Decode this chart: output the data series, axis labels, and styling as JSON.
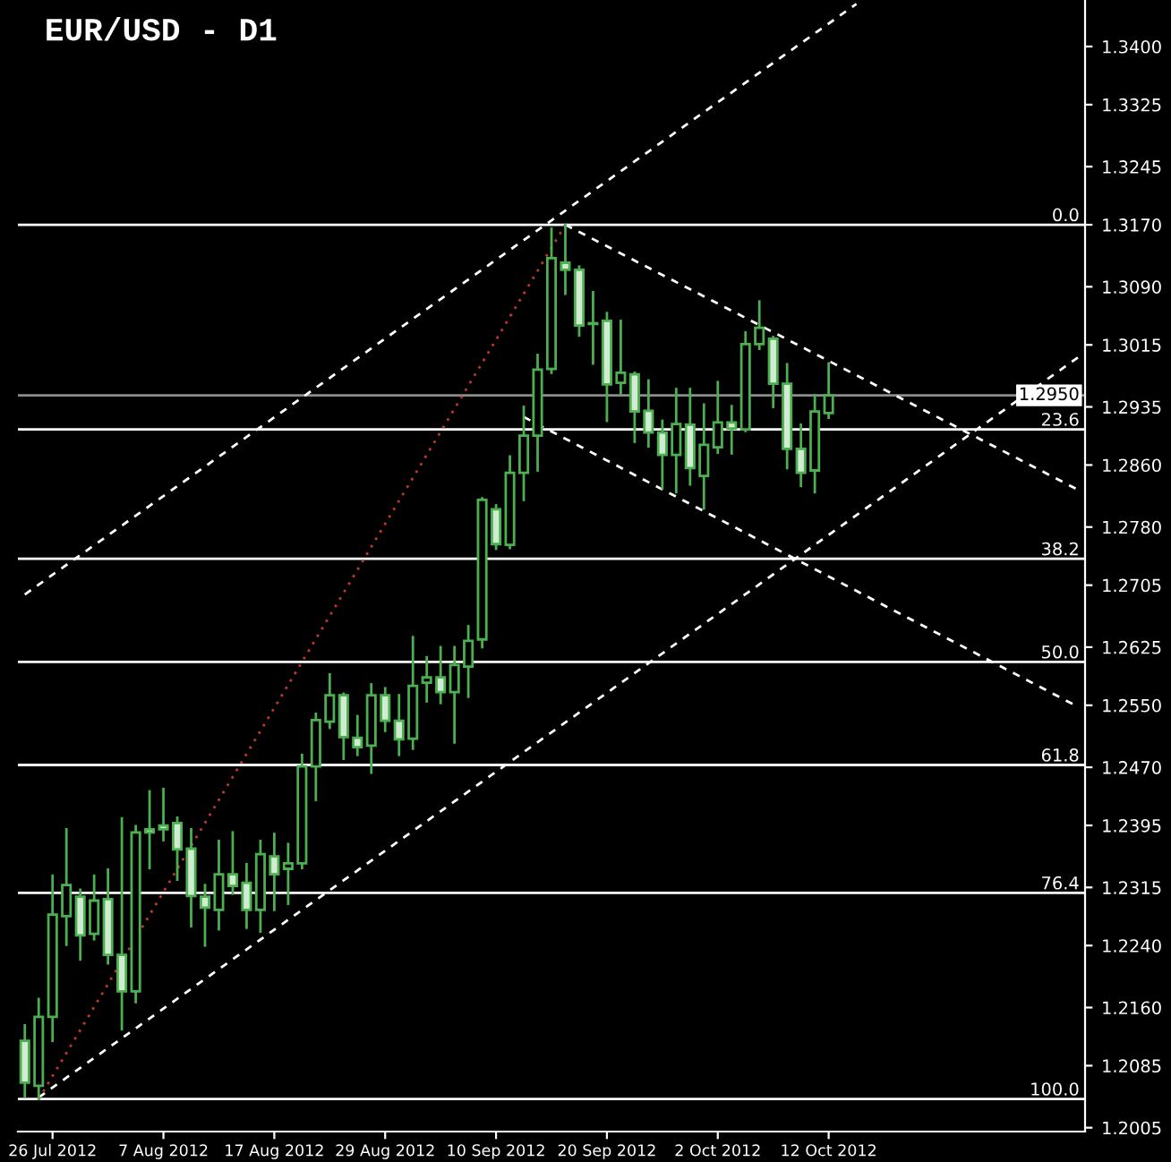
{
  "chart_data": {
    "type": "candlestick",
    "title": "EUR/USD - D1",
    "categories": [
      null,
      null,
      "26 Jul 2012",
      null,
      null,
      null,
      null,
      null,
      null,
      null,
      "7 Aug 2012",
      null,
      null,
      null,
      null,
      null,
      null,
      null,
      "17 Aug 2012",
      null,
      null,
      null,
      null,
      null,
      null,
      null,
      "29 Aug 2012",
      null,
      null,
      null,
      null,
      null,
      null,
      null,
      "10 Sep 2012",
      null,
      null,
      null,
      null,
      null,
      null,
      null,
      "20 Sep 2012",
      null,
      null,
      null,
      null,
      null,
      null,
      null,
      "2 Oct 2012",
      null,
      null,
      null,
      null,
      null,
      null,
      null,
      "12 Oct 2012",
      null,
      null,
      null,
      null,
      null,
      null,
      null,
      null,
      null,
      null,
      null,
      null,
      null,
      null,
      null,
      null,
      null,
      null
    ],
    "ylim": [
      1.2,
      1.346
    ],
    "yticks": [
      1.2005,
      1.2085,
      {
        "value": 1.216,
        "label": "1.2160"
      },
      {
        "value": 1.224,
        "label": "1.2240"
      },
      1.2315,
      1.2395,
      {
        "value": 1.247,
        "label": "1.2470"
      },
      {
        "value": 1.255,
        "label": "1.2550"
      },
      1.2625,
      1.2705,
      {
        "value": 1.278,
        "label": "1.2780"
      },
      {
        "value": 1.286,
        "label": "1.2860"
      },
      1.2935,
      1.3015,
      {
        "value": 1.309,
        "label": "1.3090"
      },
      {
        "value": 1.317,
        "label": "1.3170"
      },
      1.3245,
      1.3325,
      {
        "value": 1.34,
        "label": "1.3400"
      }
    ],
    "annotations": [
      {
        "text": "0.0",
        "y": 1.317
      },
      {
        "text": "23.6",
        "y": 1.2906
      },
      {
        "text": "38.2",
        "y": 1.2739
      },
      {
        "text": "50.0",
        "y": 1.2606
      },
      {
        "text": "61.8",
        "y": 1.2473
      },
      {
        "text": "76.4",
        "y": 1.2308
      },
      {
        "text": "100.0",
        "y": 1.2042
      }
    ],
    "ref_lines": [
      {
        "axis": "y",
        "value": 1.317,
        "color": "#ffffff"
      },
      {
        "axis": "y",
        "value": 1.2906,
        "color": "#ffffff"
      },
      {
        "axis": "y",
        "value": 1.2739,
        "color": "#ffffff"
      },
      {
        "axis": "y",
        "value": 1.2606,
        "color": "#ffffff"
      },
      {
        "axis": "y",
        "value": 1.2473,
        "color": "#ffffff"
      },
      {
        "axis": "y",
        "value": 1.2308,
        "color": "#ffffff"
      },
      {
        "axis": "y",
        "value": 1.2042,
        "color": "#ffffff"
      },
      {
        "axis": "y",
        "value": 1.295,
        "label": "1.2950",
        "color": "#8c8c8c"
      }
    ],
    "series": [
      {
        "type": "candlestick",
        "color": "#4caf50",
        "ohlc": [
          [
            1.2117,
            1.2137,
            1.2045,
            1.2063
          ],
          [
            1.2059,
            1.2171,
            1.2042,
            1.2148
          ],
          [
            1.2148,
            1.233,
            1.2117,
            1.228
          ],
          [
            1.2278,
            1.239,
            1.2241,
            1.2318
          ],
          [
            1.2303,
            1.2312,
            1.2222,
            1.2253
          ],
          [
            1.2255,
            1.233,
            1.2248,
            1.2298
          ],
          [
            1.23,
            1.2338,
            1.2217,
            1.2228
          ],
          [
            1.2228,
            1.2404,
            1.2132,
            1.2181
          ],
          [
            1.2181,
            1.2394,
            1.2167,
            1.2386
          ],
          [
            1.239,
            1.2439,
            1.234,
            1.2386
          ],
          [
            1.2395,
            1.2442,
            1.2376,
            1.239
          ],
          [
            1.2398,
            1.2405,
            1.2325,
            1.2364
          ],
          [
            1.2365,
            1.239,
            1.2265,
            1.2304
          ],
          [
            1.2303,
            1.2318,
            1.224,
            1.2289
          ],
          [
            1.2286,
            1.2375,
            1.2261,
            1.2332
          ],
          [
            1.2332,
            1.2386,
            1.2307,
            1.2317
          ],
          [
            1.2321,
            1.2345,
            1.2263,
            1.2286
          ],
          [
            1.2286,
            1.2375,
            1.2258,
            1.2358
          ],
          [
            1.2355,
            1.2384,
            1.2286,
            1.2332
          ],
          [
            1.2339,
            1.2371,
            1.2294,
            1.2346
          ],
          [
            1.2346,
            1.2486,
            1.234,
            1.2471
          ],
          [
            1.2471,
            1.2539,
            1.2428,
            1.2531
          ],
          [
            1.2529,
            1.259,
            1.2521,
            1.2563
          ],
          [
            1.2563,
            1.2565,
            1.2481,
            1.2509
          ],
          [
            1.2508,
            1.2536,
            1.2486,
            1.2496
          ],
          [
            1.2498,
            1.2577,
            1.2463,
            1.2563
          ],
          [
            1.2563,
            1.2572,
            1.2517,
            1.253
          ],
          [
            1.253,
            1.2563,
            1.2486,
            1.2506
          ],
          [
            1.2507,
            1.2638,
            1.2494,
            1.2575
          ],
          [
            1.2579,
            1.2612,
            1.2555,
            1.2586
          ],
          [
            1.2586,
            1.2625,
            1.2553,
            1.2567
          ],
          [
            1.2567,
            1.2625,
            1.2502,
            1.2602
          ],
          [
            1.26,
            1.2652,
            1.2561,
            1.2633
          ],
          [
            1.2635,
            1.2817,
            1.2625,
            1.2815
          ],
          [
            1.2803,
            1.2808,
            1.2752,
            1.2758
          ],
          [
            1.2757,
            1.2871,
            1.2753,
            1.285
          ],
          [
            1.285,
            1.2935,
            1.2815,
            1.2898
          ],
          [
            1.2898,
            1.3002,
            1.2853,
            1.2983
          ],
          [
            1.2984,
            1.3165,
            1.2979,
            1.3127
          ],
          [
            1.3121,
            1.317,
            1.3081,
            1.3112
          ],
          [
            1.3112,
            1.3116,
            1.3027,
            1.304
          ],
          [
            1.3043,
            1.3083,
            1.2991,
            1.3042
          ],
          [
            1.3046,
            1.3056,
            1.2917,
            1.2964
          ],
          [
            1.2966,
            1.3046,
            1.2952,
            1.2979
          ],
          [
            1.2977,
            1.2979,
            1.289,
            1.2929
          ],
          [
            1.293,
            1.2969,
            1.2884,
            1.2902
          ],
          [
            1.2902,
            1.2917,
            1.283,
            1.2873
          ],
          [
            1.2873,
            1.2958,
            1.2825,
            1.2913
          ],
          [
            1.2912,
            1.2958,
            1.2835,
            1.2856
          ],
          [
            1.2846,
            1.2938,
            1.2804,
            1.2886
          ],
          [
            1.2883,
            1.2967,
            1.2876,
            1.2915
          ],
          [
            1.2915,
            1.2936,
            1.2875,
            1.2907
          ],
          [
            1.2906,
            1.3031,
            1.2904,
            1.3016
          ],
          [
            1.3016,
            1.3071,
            1.301,
            1.3037
          ],
          [
            1.3023,
            1.3025,
            1.2935,
            1.2965
          ],
          [
            1.2965,
            1.299,
            1.2856,
            1.2881
          ],
          [
            1.2881,
            1.2912,
            1.2833,
            1.285
          ],
          [
            1.2853,
            1.295,
            1.2825,
            1.2929
          ],
          [
            1.2927,
            1.2991,
            1.2921,
            1.295
          ],
          null,
          null,
          null,
          null,
          null,
          null,
          null,
          null,
          null,
          null,
          null,
          null,
          null,
          null,
          null,
          null,
          null,
          null
        ]
      },
      {
        "type": "line",
        "color": "#ffffff",
        "line_style": "dashed",
        "values": [
          1.2693,
          null,
          null,
          null,
          null,
          null,
          null,
          null,
          null,
          null,
          null,
          null,
          null,
          null,
          null,
          null,
          null,
          null,
          null,
          null,
          null,
          null,
          null,
          null,
          null,
          null,
          null,
          null,
          null,
          null,
          null,
          null,
          null,
          null,
          null,
          null,
          null,
          null,
          null,
          null,
          null,
          null,
          null,
          null,
          null,
          null,
          null,
          null,
          null,
          null,
          null,
          null,
          null,
          null,
          null,
          null,
          null,
          null,
          null,
          null,
          1.3455,
          null,
          null,
          null,
          null,
          null,
          null,
          null,
          null,
          null,
          null,
          null,
          null,
          null,
          null,
          null,
          null
        ]
      },
      {
        "type": "line",
        "color": "#ffffff",
        "line_style": "dashed",
        "values": [
          null,
          1.2044,
          null,
          null,
          null,
          null,
          null,
          null,
          null,
          null,
          null,
          null,
          null,
          null,
          null,
          null,
          null,
          null,
          null,
          null,
          null,
          null,
          null,
          null,
          null,
          null,
          null,
          null,
          null,
          null,
          null,
          null,
          null,
          null,
          null,
          null,
          null,
          null,
          null,
          null,
          null,
          null,
          null,
          null,
          null,
          null,
          null,
          null,
          null,
          null,
          null,
          null,
          null,
          null,
          null,
          null,
          null,
          null,
          null,
          null,
          null,
          null,
          null,
          null,
          null,
          null,
          null,
          null,
          null,
          null,
          null,
          null,
          null,
          null,
          null,
          null,
          1.2999
        ]
      },
      {
        "type": "line",
        "color": "#c0392b",
        "line_style": "dotted",
        "values": [
          null,
          1.2042,
          null,
          null,
          null,
          null,
          null,
          null,
          null,
          null,
          null,
          null,
          null,
          null,
          null,
          null,
          null,
          null,
          null,
          null,
          null,
          null,
          null,
          null,
          null,
          null,
          null,
          null,
          null,
          null,
          null,
          null,
          null,
          null,
          null,
          null,
          null,
          null,
          null,
          1.317,
          null,
          null,
          null,
          null,
          null,
          null,
          null,
          null,
          null,
          null,
          null,
          null,
          null,
          null,
          null,
          null,
          null,
          null,
          null,
          null,
          null,
          null,
          null,
          null,
          null,
          null,
          null,
          null,
          null,
          null,
          null,
          null,
          null,
          null,
          null,
          null,
          null
        ]
      },
      {
        "type": "line",
        "color": "#ffffff",
        "line_style": "dashed",
        "values": [
          null,
          null,
          null,
          null,
          null,
          null,
          null,
          null,
          null,
          null,
          null,
          null,
          null,
          null,
          null,
          null,
          null,
          null,
          null,
          null,
          null,
          null,
          null,
          null,
          null,
          null,
          null,
          null,
          null,
          null,
          null,
          null,
          null,
          null,
          null,
          null,
          null,
          null,
          null,
          1.317,
          null,
          null,
          null,
          null,
          null,
          null,
          null,
          null,
          null,
          null,
          null,
          null,
          null,
          null,
          null,
          null,
          null,
          null,
          null,
          null,
          null,
          null,
          null,
          null,
          null,
          null,
          null,
          null,
          null,
          null,
          null,
          null,
          null,
          null,
          null,
          null,
          1.2828
        ]
      },
      {
        "type": "line",
        "color": "#ffffff",
        "line_style": "dashed",
        "values": [
          null,
          null,
          null,
          null,
          null,
          null,
          null,
          null,
          null,
          null,
          null,
          null,
          null,
          null,
          null,
          null,
          null,
          null,
          null,
          null,
          null,
          null,
          null,
          null,
          null,
          null,
          null,
          null,
          null,
          null,
          null,
          null,
          null,
          null,
          null,
          null,
          1.2922,
          null,
          null,
          null,
          null,
          null,
          null,
          null,
          null,
          null,
          null,
          null,
          null,
          null,
          null,
          null,
          null,
          null,
          null,
          null,
          null,
          null,
          null,
          null,
          null,
          null,
          null,
          null,
          null,
          null,
          null,
          null,
          null,
          null,
          null,
          null,
          null,
          null,
          null,
          null,
          1.2548
        ]
      }
    ]
  }
}
